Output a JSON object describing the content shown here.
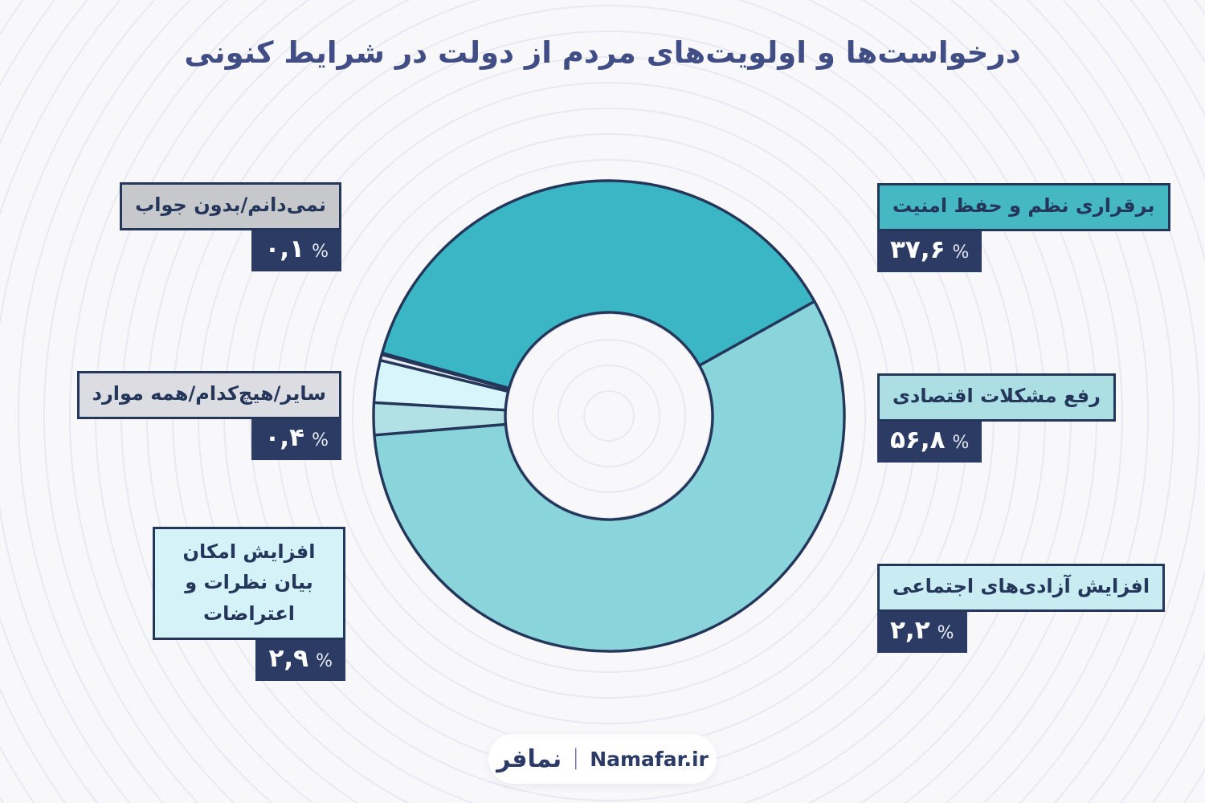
{
  "title": "درخواست‌ها و اولویت‌های مردم از دولت در شرایط کنونی",
  "colors": {
    "navy_box": "#2b3b63",
    "outline": "#243659",
    "title_text": "#414e85",
    "background": "#f8f8fb",
    "ring_pattern": "#dfe1eb",
    "accent_teal": "#3bb6c4"
  },
  "chart_data": {
    "type": "pie",
    "donut": true,
    "title": "درخواست‌ها و اولویت‌های مردم از دولت در شرایط کنونی",
    "start_angle_deg": -74.5,
    "direction": "clockwise",
    "categories": [
      "برقراری نظم و حفظ امنیت",
      "رفع مشکلات اقتصادی",
      "افزایش آزادی‌های اجتماعی",
      "افزایش امکان بیان نظرات و اعتراضات",
      "سایر/هیچ‌کدام/همه موارد",
      "نمی‌دانم/بدون جواب"
    ],
    "values": [
      37.6,
      56.8,
      2.2,
      2.9,
      0.4,
      0.1
    ],
    "display_values": [
      "۳۷,۶ %",
      "۵۶,۸ %",
      "۲,۲ %",
      "۲,۹ %",
      "۰,۴ %",
      "۰,۱ %"
    ],
    "colors": [
      "#3bb6c4",
      "#8ad4dc",
      "#b2e1e5",
      "#d9f5fc",
      "#e9eaef",
      "#c7c8cd"
    ],
    "legend_position": "side-callouts"
  },
  "callouts": [
    {
      "label": "برقراری نظم و حفظ امنیت",
      "value": "۳۷,۶",
      "unit": "%",
      "label_bg": "#45b8c4"
    },
    {
      "label": "رفع مشکلات اقتصادی",
      "value": "۵۶,۸",
      "unit": "%",
      "label_bg": "#abdfe3"
    },
    {
      "label": "افزایش آزادی‌های اجتماعی",
      "value": "۲,۲",
      "unit": "%",
      "label_bg": "#c8ecf2"
    },
    {
      "label": "افزایش امکان بیان نظرات و اعتراضات",
      "value": "۲,۹",
      "unit": "%",
      "label_bg": "#d6f2f9"
    },
    {
      "label": "سایر/هیچ‌کدام/همه موارد",
      "value": "۰,۴",
      "unit": "%",
      "label_bg": "#dcdde2"
    },
    {
      "label": "نمی‌دانم/بدون جواب",
      "value": "۰,۱",
      "unit": "%",
      "label_bg": "#c7c8cc"
    }
  ],
  "footer": {
    "logo": "نمافر",
    "separator": "|",
    "site": "Namafar.ir"
  }
}
